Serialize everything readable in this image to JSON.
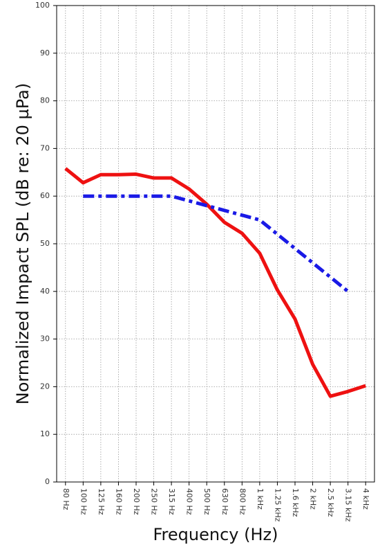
{
  "chart_data": {
    "type": "line",
    "y_label": "Normalized Impact SPL (dB re: 20 µPa)",
    "x_label": "Frequency (Hz)",
    "categories": [
      "80 Hz",
      "100 Hz",
      "125 Hz",
      "160 Hz",
      "200 Hz",
      "250 Hz",
      "315 Hz",
      "400 Hz",
      "500 Hz",
      "630 Hz",
      "800 Hz",
      "1 kHz",
      "1.25 kHz",
      "1.6 kHz",
      "2 kHz",
      "2.5 kHz",
      "3.15 kHz",
      "4 kHz"
    ],
    "series": [
      {
        "color": "#ee1111",
        "style": "solid",
        "values": [
          65.8,
          62.8,
          64.5,
          64.5,
          64.6,
          63.8,
          63.8,
          61.5,
          58.3,
          54.5,
          52.2,
          48,
          40.3,
          34.2,
          24.7,
          18,
          19,
          20.2
        ]
      },
      {
        "color": "#1a1ae6",
        "style": "dashdot",
        "values": [
          null,
          60,
          60,
          60,
          60,
          60,
          60,
          59,
          58,
          57,
          56,
          55,
          52,
          49,
          46,
          43,
          40,
          null
        ]
      }
    ],
    "ylim": [
      0,
      100
    ],
    "yticks": [
      0,
      10,
      20,
      30,
      40,
      50,
      60,
      70,
      80,
      90,
      100
    ],
    "grid": true
  }
}
